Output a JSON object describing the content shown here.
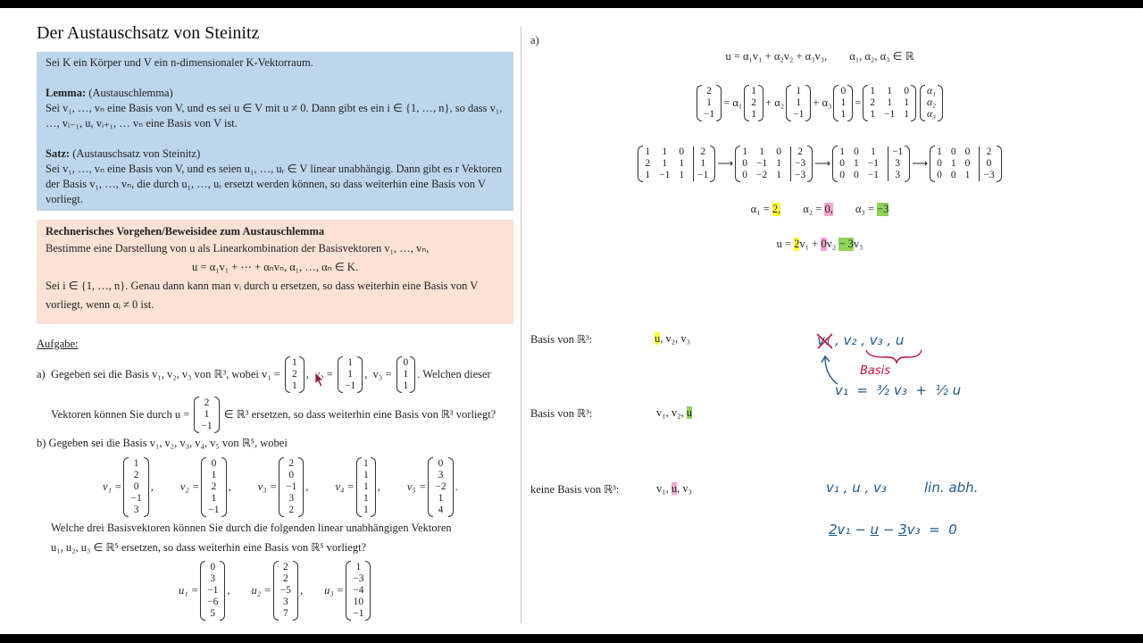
{
  "left": {
    "title": "Der Austauschsatz von Steinitz",
    "theorem_box": {
      "intro": "Sei K ein Körper und V ein n-dimensionaler K-Vektorraum.",
      "lemma_label": "Lemma:",
      "lemma_note": " (Austauschlemma)",
      "lemma_text": "Sei v₁, …, vₙ eine Basis von V, und es sei u ∈ V mit u ≠ 0. Dann gibt es ein i ∈ {1, …, n}, so dass v₁, …, vᵢ₋₁, u, vᵢ₊₁, … vₙ eine Basis von V ist.",
      "satz_label": "Satz:",
      "satz_note": " (Austauschsatz von Steinitz)",
      "satz_text": "Sei v₁, …, vₙ eine Basis von V, und es seien u₁, …, uᵣ ∈ V linear unabhängig. Dann gibt es r Vektoren der Basis v₁, …, vₙ, die durch u₁, …, uᵣ ersetzt werden können, so dass weiterhin eine Basis von V vorliegt."
    },
    "method_box": {
      "title": "Rechnerisches Vorgehen/Beweisidee zum Austauschlemma",
      "text1": "Bestimme eine Darstellung von u als Linearkombination der Basisvektoren v₁, …, vₙ,",
      "formula": "u = α₁v₁ + ⋯ + αₙvₙ,        α₁, …, αₙ ∈ K.",
      "text2": "Sei i ∈ {1, …, n}. Genau dann kann man vᵢ durch u ersetzen, so dass weiterhin eine Basis von V vorliegt, wenn αᵢ ≠ 0 ist."
    },
    "task": {
      "heading": "Aufgabe:",
      "a": {
        "p1": "a)  Gegeben sei die Basis v₁, v₂, v₃ von ℝ³, wobei v₁ = ",
        "p2": ",  v₂ = ",
        "p3": ",  v₃ = ",
        "p4": ". Welchen dieser",
        "p5": "Vektoren können Sie durch u = ",
        "p6": " ∈ ℝ³ ersetzen, so dass weiterhin eine Basis von ℝ³ vorliegt?",
        "v1": [
          [
            1
          ],
          [
            2
          ],
          [
            1
          ]
        ],
        "v2": [
          [
            1
          ],
          [
            1
          ],
          [
            -1
          ]
        ],
        "v3": [
          [
            0
          ],
          [
            1
          ],
          [
            1
          ]
        ],
        "u": [
          [
            2
          ],
          [
            1
          ],
          [
            -1
          ]
        ]
      },
      "b": {
        "p1": "b)  Gegeben sei die Basis v₁, v₂, v₃, v₄, v₅ von ℝ⁵, wobei",
        "labels_v": [
          "v₁ =",
          "v₂ =",
          "v₃ =",
          "v₄ =",
          "v₅ ="
        ],
        "v": [
          [
            [
              1
            ],
            [
              2
            ],
            [
              0
            ],
            [
              -1
            ],
            [
              3
            ]
          ],
          [
            [
              0
            ],
            [
              1
            ],
            [
              2
            ],
            [
              1
            ],
            [
              -1
            ]
          ],
          [
            [
              2
            ],
            [
              0
            ],
            [
              -1
            ],
            [
              3
            ],
            [
              2
            ]
          ],
          [
            [
              1
            ],
            [
              1
            ],
            [
              1
            ],
            [
              1
            ],
            [
              1
            ]
          ],
          [
            [
              0
            ],
            [
              3
            ],
            [
              -2
            ],
            [
              1
            ],
            [
              4
            ]
          ]
        ],
        "p2": "Welche drei Basisvektoren können Sie durch die folgenden linear unabhängigen Vektoren",
        "p3": "u₁, u₂, u₃ ∈ ℝ⁵ ersetzen, so dass weiterhin eine Basis von ℝ⁵ vorliegt?",
        "labels_u": [
          "u₁ =",
          "u₂ =",
          "u₃ ="
        ],
        "u": [
          [
            [
              0
            ],
            [
              3
            ],
            [
              -1
            ],
            [
              -6
            ],
            [
              5
            ]
          ],
          [
            [
              2
            ],
            [
              2
            ],
            [
              -5
            ],
            [
              3
            ],
            [
              7
            ]
          ],
          [
            [
              1
            ],
            [
              -3
            ],
            [
              -4
            ],
            [
              10
            ],
            [
              -1
            ]
          ]
        ]
      }
    }
  },
  "right": {
    "label": "a)",
    "eq1": "u = α₁v₁ + α₂v₂ + α₃v₃,        α₁, α₂, α₃ ∈ ℝ",
    "eq2": {
      "lhs": [
        [
          2
        ],
        [
          1
        ],
        [
          -1
        ]
      ],
      "t1": "= α₁",
      "m1": [
        [
          1
        ],
        [
          2
        ],
        [
          1
        ]
      ],
      "t2": "+ α₂",
      "m2": [
        [
          1
        ],
        [
          1
        ],
        [
          -1
        ]
      ],
      "t3": "+ α₃",
      "m3": [
        [
          0
        ],
        [
          1
        ],
        [
          1
        ]
      ],
      "t4": "=",
      "A": [
        [
          1,
          1,
          0
        ],
        [
          2,
          1,
          1
        ],
        [
          1,
          -1,
          1
        ]
      ],
      "alpha": [
        [
          "α₁"
        ],
        [
          "α₂"
        ],
        [
          "α₃"
        ]
      ]
    },
    "gauss": {
      "arrow": "⟶",
      "augmented_after_col": 3,
      "steps": [
        [
          [
            1,
            1,
            0,
            2
          ],
          [
            2,
            1,
            1,
            1
          ],
          [
            1,
            -1,
            1,
            -1
          ]
        ],
        [
          [
            1,
            1,
            0,
            2
          ],
          [
            0,
            -1,
            1,
            -3
          ],
          [
            0,
            -2,
            1,
            -3
          ]
        ],
        [
          [
            1,
            0,
            1,
            -1
          ],
          [
            0,
            1,
            -1,
            3
          ],
          [
            0,
            0,
            -1,
            3
          ]
        ],
        [
          [
            1,
            0,
            0,
            2
          ],
          [
            0,
            1,
            0,
            0
          ],
          [
            0,
            0,
            1,
            -3
          ]
        ]
      ]
    },
    "alphas": [
      {
        "label": "α₁ = ",
        "value": "2,"
      },
      {
        "label": "α₂ = ",
        "value": "0,"
      },
      {
        "label": "α₃ = ",
        "value": "−3"
      }
    ],
    "combo": {
      "u": "u = ",
      "c1": "2",
      "v1": "v₁ + ",
      "c2": "0",
      "v2": "v₂ ",
      "c3": "− 3",
      "v3": "v₃"
    },
    "highlight_colors": {
      "yellow": "#ffff33",
      "pink": "#f4a6d0",
      "green": "#8fd45a"
    },
    "bases": [
      {
        "label": "Basis von ℝ³:",
        "items": [
          "u",
          ", v₂, v₃"
        ],
        "highlight": "yellow"
      },
      {
        "label": "Basis von ℝ³:",
        "items": [
          "v₁, v₂, ",
          "u"
        ],
        "highlight": "green"
      },
      {
        "label": "keine Basis von ℝ³:",
        "items": [
          "v₁, ",
          "u",
          ", v₃"
        ],
        "highlight": "pink"
      }
    ],
    "handwriting": {
      "crossed": "v₁",
      "list": ", v₂ , v₃ , u",
      "brace_label": "Basis",
      "relation": "v₁  =  ³⁄₂ v₃  +  ¹⁄₂ u",
      "dep_vectors": "v₁ , u , v₃",
      "dep_label": "lin. abh.",
      "dep_eq": [
        "2",
        "v₁ − ",
        "u",
        " − ",
        "3",
        "v₃  =  0"
      ],
      "ink_blue": "#1f5a8a",
      "ink_red": "#c0143c"
    }
  }
}
